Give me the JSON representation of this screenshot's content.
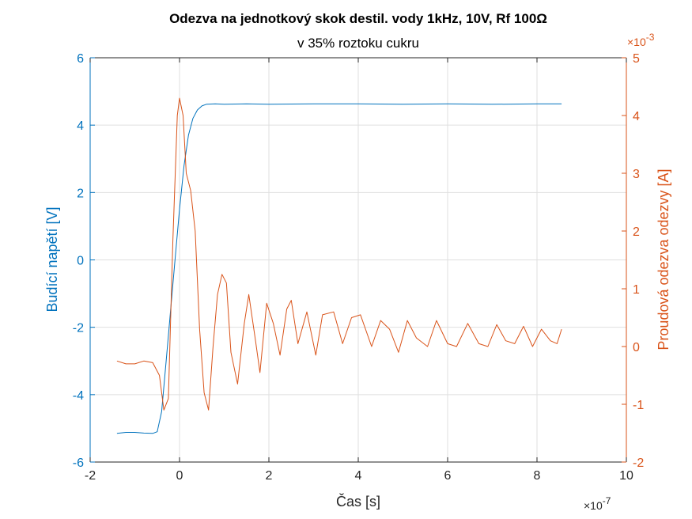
{
  "chart_data": {
    "type": "line",
    "title": "Odezva na jednotkový skok destil. vody 1kHz, 10V, Rf 100Ω",
    "subtitle": "v 35% roztoku cukru",
    "xlabel": "Čas [s]",
    "x_multiplier_label": "×10",
    "x_multiplier_exp": "-7",
    "xlim": [
      -2,
      10
    ],
    "xticks": [
      -2,
      0,
      2,
      4,
      6,
      8,
      10
    ],
    "xtick_labels": [
      "-2",
      "0",
      "2",
      "4",
      "6",
      "8",
      "10"
    ],
    "y_left": {
      "label": "Budící napětí [V]",
      "lim": [
        -6,
        6
      ],
      "ticks": [
        -6,
        -4,
        -2,
        0,
        2,
        4,
        6
      ],
      "tick_labels": [
        "-6",
        "-4",
        "-2",
        "0",
        "2",
        "4",
        "6"
      ],
      "color": "#0072BD"
    },
    "y_right": {
      "label": "Proudová odezva odezvy [A]",
      "lim": [
        -2,
        5
      ],
      "ticks": [
        -2,
        -1,
        0,
        1,
        2,
        3,
        4,
        5
      ],
      "tick_labels": [
        "-2",
        "-1",
        "0",
        "1",
        "2",
        "3",
        "4",
        "5"
      ],
      "multiplier_label": "×10",
      "multiplier_exp": "-3",
      "color": "#D95319"
    },
    "grid": true,
    "series": [
      {
        "name": "Budící napětí",
        "axis": "left",
        "color": "#0072BD",
        "x": [
          -1.4,
          -1.2,
          -1.0,
          -0.8,
          -0.6,
          -0.5,
          -0.4,
          -0.3,
          -0.2,
          -0.1,
          0.0,
          0.1,
          0.2,
          0.3,
          0.4,
          0.5,
          0.6,
          0.8,
          1.0,
          1.5,
          2.0,
          3.0,
          4.0,
          5.0,
          6.0,
          7.0,
          8.0,
          8.55
        ],
        "y": [
          -5.15,
          -5.12,
          -5.12,
          -5.14,
          -5.15,
          -5.1,
          -4.5,
          -3.0,
          -1.5,
          0.0,
          1.5,
          2.8,
          3.7,
          4.2,
          4.45,
          4.57,
          4.62,
          4.63,
          4.62,
          4.63,
          4.62,
          4.63,
          4.63,
          4.62,
          4.63,
          4.62,
          4.63,
          4.63
        ]
      },
      {
        "name": "Proudová odezva",
        "axis": "right",
        "color": "#D95319",
        "x": [
          -1.4,
          -1.2,
          -1.0,
          -0.8,
          -0.6,
          -0.45,
          -0.35,
          -0.25,
          -0.15,
          -0.05,
          0.0,
          0.08,
          0.15,
          0.25,
          0.35,
          0.45,
          0.55,
          0.65,
          0.75,
          0.85,
          0.95,
          1.05,
          1.15,
          1.3,
          1.45,
          1.55,
          1.7,
          1.8,
          1.95,
          2.1,
          2.25,
          2.4,
          2.5,
          2.65,
          2.85,
          3.05,
          3.2,
          3.45,
          3.65,
          3.85,
          4.05,
          4.3,
          4.5,
          4.7,
          4.9,
          5.1,
          5.3,
          5.55,
          5.75,
          6.0,
          6.2,
          6.45,
          6.7,
          6.9,
          7.1,
          7.3,
          7.5,
          7.7,
          7.9,
          8.1,
          8.3,
          8.45,
          8.55
        ],
        "y": [
          -0.25,
          -0.3,
          -0.3,
          -0.25,
          -0.28,
          -0.5,
          -1.1,
          -0.9,
          1.8,
          4.0,
          4.3,
          4.0,
          3.0,
          2.7,
          2.0,
          0.3,
          -0.8,
          -1.1,
          0.0,
          0.9,
          1.25,
          1.1,
          -0.1,
          -0.65,
          0.4,
          0.9,
          0.1,
          -0.45,
          0.75,
          0.4,
          -0.15,
          0.65,
          0.8,
          0.05,
          0.6,
          -0.15,
          0.55,
          0.6,
          0.05,
          0.5,
          0.55,
          0.0,
          0.45,
          0.3,
          -0.1,
          0.45,
          0.15,
          0.0,
          0.45,
          0.05,
          0.0,
          0.4,
          0.05,
          0.0,
          0.38,
          0.1,
          0.05,
          0.35,
          0.0,
          0.3,
          0.1,
          0.05,
          0.3
        ]
      }
    ]
  }
}
